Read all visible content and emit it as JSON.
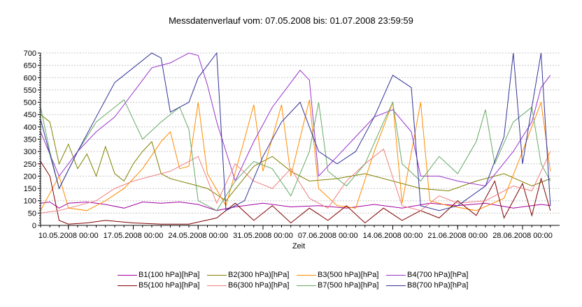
{
  "chart_data": {
    "type": "line",
    "title": "Messdatenverlauf vom: 07.05.2008  bis: 01.07.2008 23:59:59",
    "xlabel": "Zeit",
    "ylabel": "",
    "ylim": [
      0,
      700
    ],
    "yticks": [
      0,
      50,
      100,
      150,
      200,
      250,
      300,
      350,
      400,
      450,
      500,
      550,
      600,
      650,
      700
    ],
    "xlim": [
      "2008-05-07 00:00",
      "2008-07-01 23:59"
    ],
    "xticks": [
      "10.05.2008 00:00",
      "17.05.2008 00:00",
      "24.05.2008 00:00",
      "31.05.2008 00:00",
      "07.06.2008 00:00",
      "14.06.2008 00:00",
      "21.06.2008 00:00",
      "28.06.2008 00:00"
    ],
    "grid": true,
    "legend_position": "bottom",
    "series": [
      {
        "name": "B1(100 hPa)[hPa]",
        "color": "#a000a0",
        "points": [
          [
            "2008-05-07",
            90
          ],
          [
            "2008-05-08",
            95
          ],
          [
            "2008-05-09",
            70
          ],
          [
            "2008-05-10",
            90
          ],
          [
            "2008-05-12",
            95
          ],
          [
            "2008-05-14",
            85
          ],
          [
            "2008-05-16",
            70
          ],
          [
            "2008-05-18",
            95
          ],
          [
            "2008-05-20",
            90
          ],
          [
            "2008-05-22",
            95
          ],
          [
            "2008-05-24",
            85
          ],
          [
            "2008-05-26",
            60
          ],
          [
            "2008-05-28",
            75
          ],
          [
            "2008-05-31",
            90
          ],
          [
            "2008-06-03",
            75
          ],
          [
            "2008-06-06",
            80
          ],
          [
            "2008-06-09",
            70
          ],
          [
            "2008-06-12",
            85
          ],
          [
            "2008-06-15",
            70
          ],
          [
            "2008-06-18",
            90
          ],
          [
            "2008-06-21",
            80
          ],
          [
            "2008-06-24",
            90
          ],
          [
            "2008-06-27",
            70
          ],
          [
            "2008-06-30",
            85
          ],
          [
            "2008-07-01",
            80
          ]
        ]
      },
      {
        "name": "B2(300 hPa)[hPa]",
        "color": "#808000",
        "points": [
          [
            "2008-05-07",
            450
          ],
          [
            "2008-05-08",
            420
          ],
          [
            "2008-05-09",
            250
          ],
          [
            "2008-05-10",
            330
          ],
          [
            "2008-05-11",
            230
          ],
          [
            "2008-05-12",
            290
          ],
          [
            "2008-05-13",
            200
          ],
          [
            "2008-05-14",
            320
          ],
          [
            "2008-05-15",
            210
          ],
          [
            "2008-05-16",
            180
          ],
          [
            "2008-05-17",
            250
          ],
          [
            "2008-05-18",
            300
          ],
          [
            "2008-05-19",
            340
          ],
          [
            "2008-05-20",
            210
          ],
          [
            "2008-05-21",
            190
          ],
          [
            "2008-05-23",
            170
          ],
          [
            "2008-05-25",
            150
          ],
          [
            "2008-05-27",
            100
          ],
          [
            "2008-05-30",
            240
          ],
          [
            "2008-06-01",
            280
          ],
          [
            "2008-06-03",
            220
          ],
          [
            "2008-06-05",
            180
          ],
          [
            "2008-06-08",
            190
          ],
          [
            "2008-06-11",
            210
          ],
          [
            "2008-06-14",
            180
          ],
          [
            "2008-06-17",
            150
          ],
          [
            "2008-06-20",
            140
          ],
          [
            "2008-06-23",
            180
          ],
          [
            "2008-06-26",
            210
          ],
          [
            "2008-06-29",
            160
          ],
          [
            "2008-07-01",
            190
          ]
        ]
      },
      {
        "name": "B3(500 hPa)[hPa]",
        "color": "#ff8c00",
        "points": [
          [
            "2008-05-07",
            60
          ],
          [
            "2008-05-09",
            200
          ],
          [
            "2008-05-10",
            70
          ],
          [
            "2008-05-12",
            60
          ],
          [
            "2008-05-14",
            100
          ],
          [
            "2008-05-16",
            150
          ],
          [
            "2008-05-18",
            230
          ],
          [
            "2008-05-20",
            340
          ],
          [
            "2008-05-21",
            380
          ],
          [
            "2008-05-22",
            230
          ],
          [
            "2008-05-23",
            240
          ],
          [
            "2008-05-24",
            500
          ],
          [
            "2008-05-25",
            210
          ],
          [
            "2008-05-27",
            80
          ],
          [
            "2008-05-29",
            350
          ],
          [
            "2008-05-30",
            490
          ],
          [
            "2008-05-31",
            220
          ],
          [
            "2008-06-02",
            490
          ],
          [
            "2008-06-03",
            200
          ],
          [
            "2008-06-05",
            510
          ],
          [
            "2008-06-06",
            150
          ],
          [
            "2008-06-08",
            80
          ],
          [
            "2008-06-10",
            70
          ],
          [
            "2008-06-12",
            300
          ],
          [
            "2008-06-14",
            500
          ],
          [
            "2008-06-15",
            90
          ],
          [
            "2008-06-17",
            500
          ],
          [
            "2008-06-18",
            100
          ],
          [
            "2008-06-20",
            80
          ],
          [
            "2008-06-23",
            60
          ],
          [
            "2008-06-26",
            110
          ],
          [
            "2008-06-28",
            300
          ],
          [
            "2008-06-30",
            500
          ],
          [
            "2008-07-01",
            220
          ]
        ]
      },
      {
        "name": "B4(700 hPa)[hPa]",
        "color": "#9933cc",
        "points": [
          [
            "2008-05-07",
            380
          ],
          [
            "2008-05-09",
            200
          ],
          [
            "2008-05-11",
            300
          ],
          [
            "2008-05-13",
            380
          ],
          [
            "2008-05-15",
            440
          ],
          [
            "2008-05-17",
            540
          ],
          [
            "2008-05-19",
            640
          ],
          [
            "2008-05-21",
            660
          ],
          [
            "2008-05-23",
            700
          ],
          [
            "2008-05-24",
            690
          ],
          [
            "2008-05-25",
            570
          ],
          [
            "2008-05-26",
            420
          ],
          [
            "2008-05-28",
            180
          ],
          [
            "2008-05-30",
            340
          ],
          [
            "2008-06-01",
            480
          ],
          [
            "2008-06-03",
            580
          ],
          [
            "2008-06-04",
            630
          ],
          [
            "2008-06-05",
            590
          ],
          [
            "2008-06-06",
            200
          ],
          [
            "2008-06-08",
            280
          ],
          [
            "2008-06-10",
            360
          ],
          [
            "2008-06-12",
            440
          ],
          [
            "2008-06-14",
            470
          ],
          [
            "2008-06-16",
            380
          ],
          [
            "2008-06-17",
            200
          ],
          [
            "2008-06-19",
            200
          ],
          [
            "2008-06-21",
            180
          ],
          [
            "2008-06-24",
            160
          ],
          [
            "2008-06-27",
            300
          ],
          [
            "2008-06-29",
            420
          ],
          [
            "2008-06-30",
            560
          ],
          [
            "2008-07-01",
            610
          ]
        ]
      },
      {
        "name": "B5(100 hPa)[hPa]",
        "color": "#800000",
        "points": [
          [
            "2008-05-07",
            260
          ],
          [
            "2008-05-08",
            200
          ],
          [
            "2008-05-09",
            20
          ],
          [
            "2008-05-10",
            5
          ],
          [
            "2008-05-12",
            10
          ],
          [
            "2008-05-14",
            20
          ],
          [
            "2008-05-17",
            10
          ],
          [
            "2008-05-20",
            5
          ],
          [
            "2008-05-23",
            5
          ],
          [
            "2008-05-26",
            30
          ],
          [
            "2008-05-28",
            90
          ],
          [
            "2008-05-30",
            20
          ],
          [
            "2008-06-01",
            80
          ],
          [
            "2008-06-03",
            10
          ],
          [
            "2008-06-05",
            70
          ],
          [
            "2008-06-07",
            20
          ],
          [
            "2008-06-09",
            80
          ],
          [
            "2008-06-11",
            10
          ],
          [
            "2008-06-13",
            70
          ],
          [
            "2008-06-15",
            20
          ],
          [
            "2008-06-17",
            60
          ],
          [
            "2008-06-19",
            30
          ],
          [
            "2008-06-21",
            100
          ],
          [
            "2008-06-23",
            40
          ],
          [
            "2008-06-25",
            180
          ],
          [
            "2008-06-26",
            30
          ],
          [
            "2008-06-28",
            170
          ],
          [
            "2008-06-29",
            40
          ],
          [
            "2008-06-30",
            190
          ],
          [
            "2008-07-01",
            60
          ]
        ]
      },
      {
        "name": "B6(300 hPa)[hPa]",
        "color": "#f08080",
        "points": [
          [
            "2008-05-07",
            50
          ],
          [
            "2008-05-09",
            60
          ],
          [
            "2008-05-11",
            80
          ],
          [
            "2008-05-13",
            100
          ],
          [
            "2008-05-15",
            150
          ],
          [
            "2008-05-17",
            180
          ],
          [
            "2008-05-19",
            200
          ],
          [
            "2008-05-21",
            220
          ],
          [
            "2008-05-23",
            260
          ],
          [
            "2008-05-24",
            280
          ],
          [
            "2008-05-26",
            90
          ],
          [
            "2008-05-28",
            250
          ],
          [
            "2008-05-30",
            180
          ],
          [
            "2008-06-01",
            150
          ],
          [
            "2008-06-03",
            230
          ],
          [
            "2008-06-05",
            110
          ],
          [
            "2008-06-07",
            70
          ],
          [
            "2008-06-09",
            180
          ],
          [
            "2008-06-11",
            250
          ],
          [
            "2008-06-13",
            310
          ],
          [
            "2008-06-15",
            80
          ],
          [
            "2008-06-17",
            60
          ],
          [
            "2008-06-19",
            120
          ],
          [
            "2008-06-21",
            90
          ],
          [
            "2008-06-24",
            100
          ],
          [
            "2008-06-27",
            160
          ],
          [
            "2008-06-29",
            140
          ],
          [
            "2008-07-01",
            300
          ]
        ]
      },
      {
        "name": "B7(500 hPa)[hPa]",
        "color": "#66aa66",
        "points": [
          [
            "2008-05-07",
            480
          ],
          [
            "2008-05-08",
            300
          ],
          [
            "2008-05-09",
            150
          ],
          [
            "2008-05-11",
            300
          ],
          [
            "2008-05-13",
            420
          ],
          [
            "2008-05-15",
            480
          ],
          [
            "2008-05-16",
            510
          ],
          [
            "2008-05-17",
            430
          ],
          [
            "2008-05-18",
            350
          ],
          [
            "2008-05-20",
            420
          ],
          [
            "2008-05-22",
            480
          ],
          [
            "2008-05-23",
            390
          ],
          [
            "2008-05-24",
            100
          ],
          [
            "2008-05-26",
            60
          ],
          [
            "2008-05-28",
            180
          ],
          [
            "2008-05-30",
            260
          ],
          [
            "2008-06-01",
            230
          ],
          [
            "2008-06-03",
            120
          ],
          [
            "2008-06-05",
            300
          ],
          [
            "2008-06-06",
            500
          ],
          [
            "2008-06-07",
            220
          ],
          [
            "2008-06-09",
            160
          ],
          [
            "2008-06-11",
            250
          ],
          [
            "2008-06-13",
            420
          ],
          [
            "2008-06-14",
            500
          ],
          [
            "2008-06-15",
            250
          ],
          [
            "2008-06-17",
            180
          ],
          [
            "2008-06-19",
            280
          ],
          [
            "2008-06-21",
            210
          ],
          [
            "2008-06-23",
            340
          ],
          [
            "2008-06-24",
            470
          ],
          [
            "2008-06-25",
            250
          ],
          [
            "2008-06-27",
            420
          ],
          [
            "2008-06-29",
            480
          ],
          [
            "2008-06-30",
            250
          ],
          [
            "2008-07-01",
            180
          ]
        ]
      },
      {
        "name": "B8(700 hPa)[hPa]",
        "color": "#333399",
        "points": [
          [
            "2008-05-07",
            430
          ],
          [
            "2008-05-09",
            150
          ],
          [
            "2008-05-11",
            300
          ],
          [
            "2008-05-13",
            440
          ],
          [
            "2008-05-15",
            580
          ],
          [
            "2008-05-17",
            640
          ],
          [
            "2008-05-19",
            700
          ],
          [
            "2008-05-20",
            680
          ],
          [
            "2008-05-21",
            460
          ],
          [
            "2008-05-23",
            500
          ],
          [
            "2008-05-24",
            600
          ],
          [
            "2008-05-26",
            700
          ],
          [
            "2008-05-27",
            60
          ],
          [
            "2008-05-29",
            100
          ],
          [
            "2008-05-31",
            280
          ],
          [
            "2008-06-02",
            420
          ],
          [
            "2008-06-04",
            500
          ],
          [
            "2008-06-06",
            300
          ],
          [
            "2008-06-08",
            250
          ],
          [
            "2008-06-10",
            300
          ],
          [
            "2008-06-12",
            440
          ],
          [
            "2008-06-14",
            610
          ],
          [
            "2008-06-16",
            560
          ],
          [
            "2008-06-17",
            80
          ],
          [
            "2008-06-19",
            60
          ],
          [
            "2008-06-21",
            80
          ],
          [
            "2008-06-24",
            160
          ],
          [
            "2008-06-26",
            360
          ],
          [
            "2008-06-27",
            700
          ],
          [
            "2008-06-28",
            250
          ],
          [
            "2008-06-29",
            480
          ],
          [
            "2008-06-30",
            700
          ],
          [
            "2008-07-01",
            80
          ]
        ]
      }
    ]
  }
}
